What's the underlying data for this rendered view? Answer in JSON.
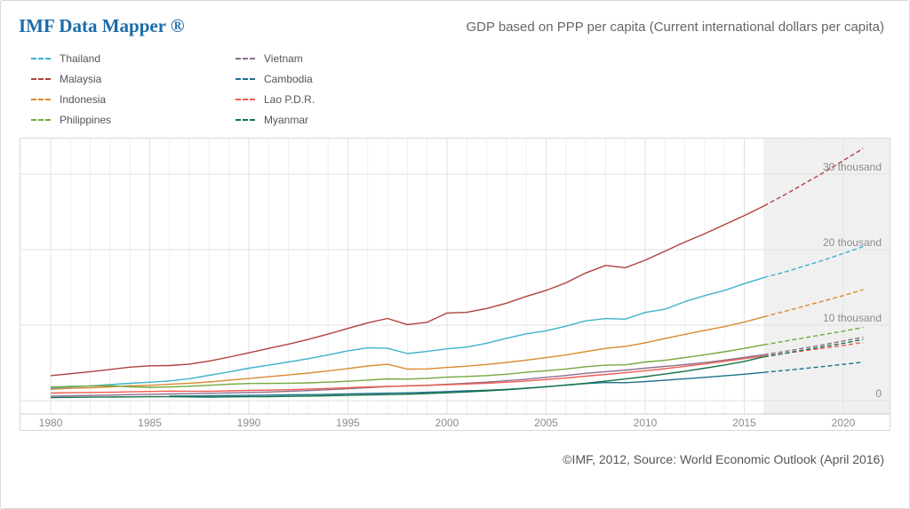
{
  "header": {
    "logo": "IMF Data Mapper ®",
    "title": "GDP based on PPP per capita (Current international dollars per capita)"
  },
  "footer": {
    "source": "©IMF, 2012, Source: World Economic Outlook (April 2016)"
  },
  "chart_data": {
    "type": "line",
    "title": "GDP based on PPP per capita (Current international dollars per capita)",
    "x": [
      1980,
      1981,
      1982,
      1983,
      1984,
      1985,
      1986,
      1987,
      1988,
      1989,
      1990,
      1991,
      1992,
      1993,
      1994,
      1995,
      1996,
      1997,
      1998,
      1999,
      2000,
      2001,
      2002,
      2003,
      2004,
      2005,
      2006,
      2007,
      2008,
      2009,
      2010,
      2011,
      2012,
      2013,
      2014,
      2015,
      2016,
      2017,
      2018,
      2019,
      2020,
      2021
    ],
    "xticks": [
      1980,
      1985,
      1990,
      1995,
      2000,
      2005,
      2010,
      2015,
      2020
    ],
    "ylabels": [
      {
        "value": 30000,
        "label": "30 thousand"
      },
      {
        "value": 20000,
        "label": "20 thousand"
      },
      {
        "value": 10000,
        "label": "10 thousand"
      },
      {
        "value": 0,
        "label": "0"
      }
    ],
    "ylim": [
      0,
      34800
    ],
    "grid": true,
    "legend_position": "top-left",
    "projection_start": 2016,
    "projection_note": "Shaded band with dashed lines after 2016 indicates IMF projections",
    "colors": {
      "projection_band": "#f0f0f0",
      "grid_major": "#e2e2e2",
      "grid_minor": "#efefef",
      "axis_line": "#cccccc",
      "border": "#d9d9d9",
      "tick_text": "#8c8c8c"
    },
    "series": [
      {
        "id": "thailand",
        "name": "Thailand",
        "color": "#3fb1cd",
        "values": [
          1657,
          1800,
          1952,
          2124,
          2290,
          2434,
          2610,
          2905,
          3350,
          3801,
          4290,
          4699,
          5118,
          5556,
          6047,
          6600,
          6990,
          6930,
          6230,
          6520,
          6860,
          7100,
          7600,
          8260,
          8850,
          9250,
          9860,
          10570,
          10870,
          10790,
          11680,
          12100,
          13100,
          13900,
          14600,
          15500,
          16300,
          17000,
          17800,
          18600,
          19500,
          20400
        ]
      },
      {
        "id": "malaysia",
        "name": "Malaysia",
        "color": "#b0413e",
        "values": [
          3300,
          3560,
          3840,
          4130,
          4430,
          4610,
          4650,
          4840,
          5250,
          5760,
          6330,
          6920,
          7480,
          8110,
          8810,
          9570,
          10310,
          10880,
          10070,
          10380,
          11600,
          11700,
          12200,
          12900,
          13800,
          14600,
          15600,
          16900,
          17900,
          17600,
          18600,
          19800,
          21000,
          22100,
          23300,
          24500,
          25800,
          27200,
          28700,
          30200,
          31800,
          33400
        ]
      },
      {
        "id": "indonesia",
        "name": "Indonesia",
        "color": "#da8a2e",
        "values": [
          1500,
          1640,
          1700,
          1820,
          1960,
          2030,
          2160,
          2300,
          2470,
          2690,
          2930,
          3170,
          3400,
          3650,
          3930,
          4250,
          4590,
          4810,
          4180,
          4200,
          4390,
          4560,
          4790,
          5060,
          5370,
          5690,
          6050,
          6490,
          6920,
          7190,
          7660,
          8220,
          8780,
          9300,
          9800,
          10400,
          11100,
          11800,
          12500,
          13200,
          13900,
          14700
        ]
      },
      {
        "id": "philippines",
        "name": "Philippines",
        "color": "#74a93e",
        "values": [
          1800,
          1880,
          1940,
          1980,
          1830,
          1760,
          1810,
          1910,
          2040,
          2180,
          2270,
          2280,
          2300,
          2350,
          2450,
          2570,
          2720,
          2880,
          2850,
          2950,
          3100,
          3200,
          3320,
          3500,
          3750,
          3950,
          4190,
          4500,
          4690,
          4740,
          5120,
          5340,
          5690,
          6070,
          6470,
          6920,
          7400,
          7850,
          8300,
          8750,
          9200,
          9700
        ]
      },
      {
        "id": "vietnam",
        "name": "Vietnam",
        "color": "#8d6c8e",
        "values": [
          600,
          630,
          680,
          730,
          790,
          840,
          880,
          920,
          960,
          1020,
          1080,
          1140,
          1230,
          1330,
          1450,
          1580,
          1720,
          1860,
          1960,
          2030,
          2160,
          2300,
          2450,
          2630,
          2840,
          3080,
          3330,
          3610,
          3830,
          4040,
          4290,
          4540,
          4760,
          5030,
          5370,
          5730,
          6100,
          6500,
          6950,
          7400,
          7900,
          8400
        ]
      },
      {
        "id": "cambodia",
        "name": "Cambodia",
        "color": "#1f6f8b",
        "values": [
          null,
          null,
          null,
          null,
          null,
          null,
          600,
          610,
          640,
          670,
          700,
          730,
          770,
          790,
          830,
          890,
          940,
          990,
          1020,
          1110,
          1200,
          1290,
          1380,
          1500,
          1660,
          1850,
          2060,
          2260,
          2400,
          2380,
          2520,
          2690,
          2890,
          3080,
          3280,
          3500,
          3740,
          3990,
          4250,
          4520,
          4800,
          5100
        ]
      },
      {
        "id": "lao-pdr",
        "name": "Lao P.D.R.",
        "color": "#ef5d51",
        "values": [
          1000,
          1050,
          1080,
          1110,
          1160,
          1210,
          1260,
          1250,
          1230,
          1290,
          1350,
          1390,
          1450,
          1520,
          1610,
          1710,
          1810,
          1900,
          1940,
          2010,
          2100,
          2200,
          2310,
          2440,
          2600,
          2790,
          3000,
          3240,
          3470,
          3690,
          3950,
          4230,
          4540,
          4860,
          5200,
          5560,
          5900,
          6250,
          6600,
          6950,
          7300,
          7700
        ]
      },
      {
        "id": "myanmar",
        "name": "Myanmar",
        "color": "#157347",
        "values": [
          400,
          430,
          460,
          480,
          500,
          520,
          520,
          500,
          470,
          490,
          520,
          520,
          560,
          600,
          650,
          700,
          750,
          800,
          850,
          940,
          1030,
          1150,
          1290,
          1440,
          1620,
          1830,
          2060,
          2310,
          2580,
          2870,
          3180,
          3520,
          3890,
          4290,
          4720,
          5200,
          5800,
          6250,
          6700,
          7150,
          7600,
          8100
        ]
      }
    ]
  }
}
